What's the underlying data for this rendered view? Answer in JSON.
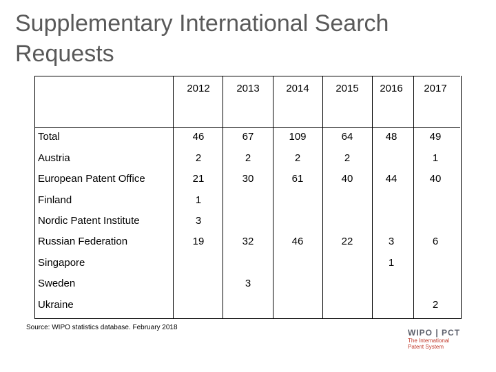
{
  "title": "Supplementary International Search Requests",
  "columns": [
    "2012",
    "2013",
    "2014",
    "2015",
    "2016",
    "2017"
  ],
  "rows": [
    {
      "label": "Total",
      "values": [
        "46",
        "67",
        "109",
        "64",
        "48",
        "49"
      ]
    },
    {
      "label": "Austria",
      "values": [
        "2",
        "2",
        "2",
        "2",
        "",
        "1"
      ]
    },
    {
      "label": "European Patent Office",
      "values": [
        "21",
        "30",
        "61",
        "40",
        "44",
        "40"
      ]
    },
    {
      "label": "Finland",
      "values": [
        "1",
        "",
        "",
        "",
        "",
        ""
      ]
    },
    {
      "label": "Nordic Patent Institute",
      "values": [
        "3",
        "",
        "",
        "",
        "",
        ""
      ]
    },
    {
      "label": "Russian Federation",
      "values": [
        "19",
        "32",
        "46",
        "22",
        "3",
        "6"
      ]
    },
    {
      "label": "Singapore",
      "values": [
        "",
        "",
        "",
        "",
        "1",
        ""
      ]
    },
    {
      "label": "Sweden",
      "values": [
        "",
        "3",
        "",
        "",
        "",
        ""
      ]
    },
    {
      "label": "Ukraine",
      "values": [
        "",
        "",
        "",
        "",
        "",
        "2"
      ]
    }
  ],
  "source": "Source: WIPO statistics database. February 2018",
  "logo": {
    "main": "WIPO | PCT",
    "sub_line1": "The International",
    "sub_line2": "Patent System"
  },
  "colors": {
    "title": "#595959",
    "logo_accent": "#c0392b"
  }
}
